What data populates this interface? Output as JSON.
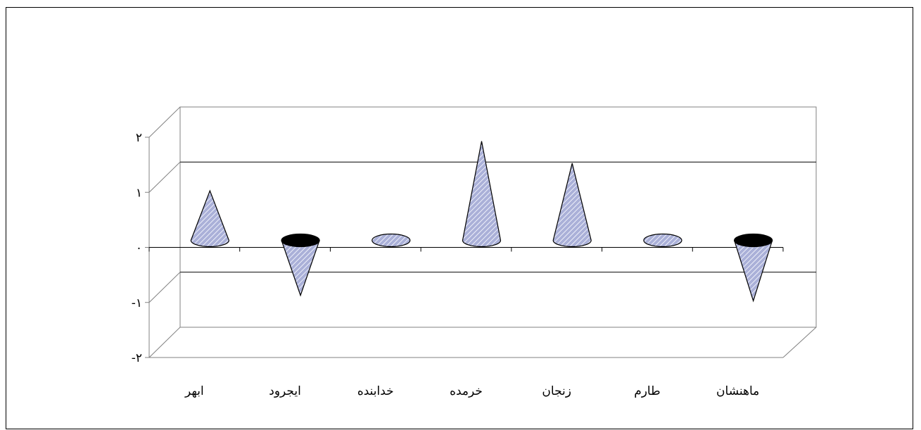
{
  "chart_data": {
    "type": "bar",
    "subtype": "3d-cone",
    "title": "",
    "xlabel": "",
    "ylabel": "",
    "categories": [
      "ابهر",
      "ایجرود",
      "خدابنده",
      "خرمده",
      "زنجان",
      "طارم",
      "ماهنشان"
    ],
    "values": [
      0.9,
      -1.0,
      0.0,
      1.8,
      1.4,
      0.0,
      -1.1
    ],
    "ylim": [
      -2,
      2
    ],
    "yticks": [
      -2,
      -1,
      0,
      1,
      2
    ],
    "ytick_labels": [
      "-۲",
      "-۱",
      "۰",
      "۱",
      "۲"
    ],
    "grid": true,
    "legend": "none",
    "colors": {
      "cone_fill": "#aab0d8",
      "cone_stripe": "#eef0fa",
      "cone_base_dark": "#000000",
      "axis": "#808080",
      "gridline": "#000000"
    }
  }
}
